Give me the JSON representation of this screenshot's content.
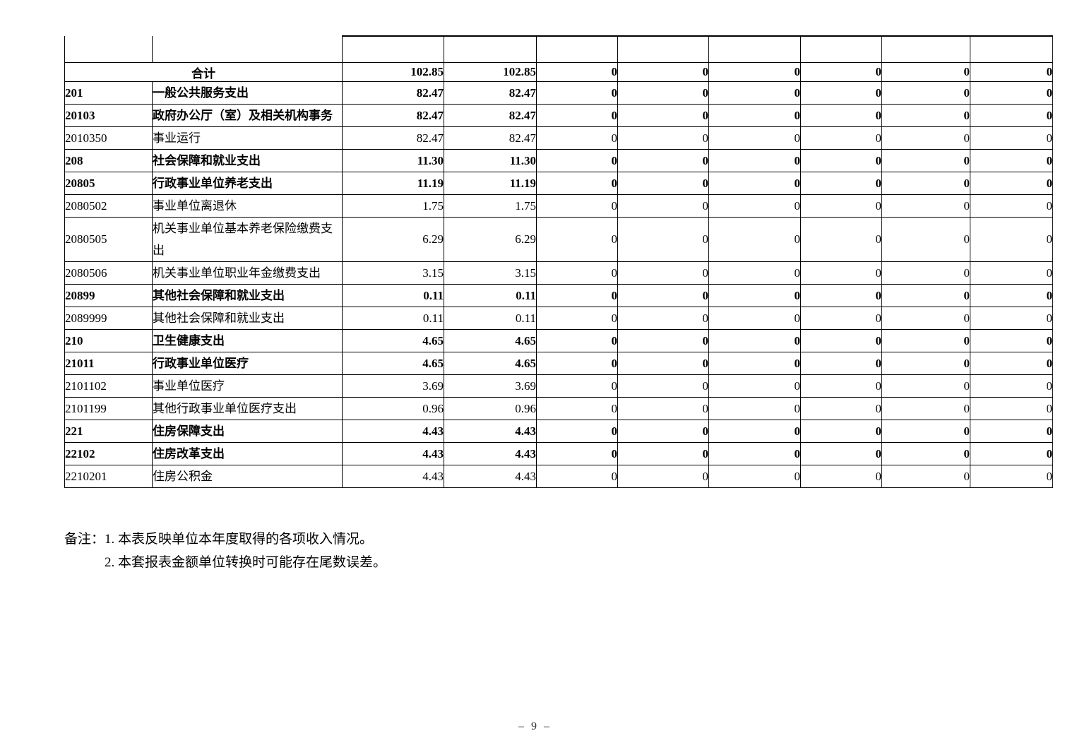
{
  "table": {
    "total_row": {
      "label": "合计",
      "values": [
        "102.85",
        "102.85",
        "0",
        "0",
        "0",
        "0",
        "0",
        "0"
      ]
    },
    "rows": [
      {
        "code": "201",
        "name": "一般公共服务支出",
        "emphasis": true,
        "values": [
          "82.47",
          "82.47",
          "0",
          "0",
          "0",
          "0",
          "0",
          "0"
        ]
      },
      {
        "code": "20103",
        "name": "政府办公厅（室）及相关机构事务",
        "emphasis": true,
        "values": [
          "82.47",
          "82.47",
          "0",
          "0",
          "0",
          "0",
          "0",
          "0"
        ]
      },
      {
        "code": "2010350",
        "name": "事业运行",
        "emphasis": false,
        "values": [
          "82.47",
          "82.47",
          "0",
          "0",
          "0",
          "0",
          "0",
          "0"
        ]
      },
      {
        "code": "208",
        "name": "社会保障和就业支出",
        "emphasis": true,
        "values": [
          "11.30",
          "11.30",
          "0",
          "0",
          "0",
          "0",
          "0",
          "0"
        ]
      },
      {
        "code": "20805",
        "name": "行政事业单位养老支出",
        "emphasis": true,
        "values": [
          "11.19",
          "11.19",
          "0",
          "0",
          "0",
          "0",
          "0",
          "0"
        ]
      },
      {
        "code": "2080502",
        "name": "事业单位离退休",
        "emphasis": false,
        "values": [
          "1.75",
          "1.75",
          "0",
          "0",
          "0",
          "0",
          "0",
          "0"
        ]
      },
      {
        "code": "2080505",
        "name": "机关事业单位基本养老保险缴费支出",
        "emphasis": false,
        "values": [
          "6.29",
          "6.29",
          "0",
          "0",
          "0",
          "0",
          "0",
          "0"
        ]
      },
      {
        "code": "2080506",
        "name": "机关事业单位职业年金缴费支出",
        "emphasis": false,
        "values": [
          "3.15",
          "3.15",
          "0",
          "0",
          "0",
          "0",
          "0",
          "0"
        ]
      },
      {
        "code": "20899",
        "name": "其他社会保障和就业支出",
        "emphasis": true,
        "values": [
          "0.11",
          "0.11",
          "0",
          "0",
          "0",
          "0",
          "0",
          "0"
        ]
      },
      {
        "code": "2089999",
        "name": "其他社会保障和就业支出",
        "emphasis": false,
        "values": [
          "0.11",
          "0.11",
          "0",
          "0",
          "0",
          "0",
          "0",
          "0"
        ]
      },
      {
        "code": "210",
        "name": "卫生健康支出",
        "emphasis": true,
        "values": [
          "4.65",
          "4.65",
          "0",
          "0",
          "0",
          "0",
          "0",
          "0"
        ]
      },
      {
        "code": "21011",
        "name": "行政事业单位医疗",
        "emphasis": true,
        "values": [
          "4.65",
          "4.65",
          "0",
          "0",
          "0",
          "0",
          "0",
          "0"
        ]
      },
      {
        "code": "2101102",
        "name": "事业单位医疗",
        "emphasis": false,
        "values": [
          "3.69",
          "3.69",
          "0",
          "0",
          "0",
          "0",
          "0",
          "0"
        ]
      },
      {
        "code": "2101199",
        "name": "其他行政事业单位医疗支出",
        "emphasis": false,
        "values": [
          "0.96",
          "0.96",
          "0",
          "0",
          "0",
          "0",
          "0",
          "0"
        ]
      },
      {
        "code": "221",
        "name": "住房保障支出",
        "emphasis": true,
        "values": [
          "4.43",
          "4.43",
          "0",
          "0",
          "0",
          "0",
          "0",
          "0"
        ]
      },
      {
        "code": "22102",
        "name": "住房改革支出",
        "emphasis": true,
        "values": [
          "4.43",
          "4.43",
          "0",
          "0",
          "0",
          "0",
          "0",
          "0"
        ]
      },
      {
        "code": "2210201",
        "name": "住房公积金",
        "emphasis": false,
        "values": [
          "4.43",
          "4.43",
          "0",
          "0",
          "0",
          "0",
          "0",
          "0"
        ]
      }
    ]
  },
  "notes": {
    "line1": "备注：1. 本表反映单位本年度取得的各项收入情况。",
    "line2": "2. 本套报表金额单位转换时可能存在尾数误差。"
  },
  "footer": {
    "page_number": "– 9 –"
  }
}
